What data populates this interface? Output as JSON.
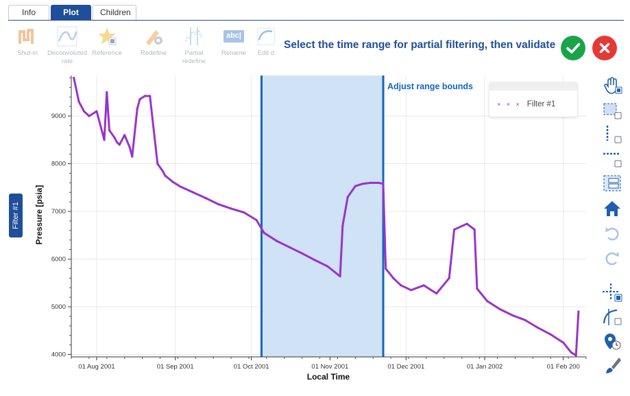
{
  "tabs": [
    {
      "label": "Info"
    },
    {
      "label": "Plot"
    },
    {
      "label": "Children"
    }
  ],
  "toolbar": {
    "items": [
      {
        "label1": "Shut-in",
        "label2": "",
        "icon": "shut-in-icon"
      },
      {
        "label1": "Deconvoluted",
        "label2": "rate",
        "icon": "deconvolution-icon"
      },
      {
        "label1": "Reference",
        "label2": "",
        "icon": "star-icon"
      },
      {
        "label1": "Redefine",
        "label2": "",
        "icon": "pencil-gear-icon"
      },
      {
        "label1": "Partial",
        "label2": "redefine",
        "icon": "partial-redefine-icon"
      },
      {
        "label1": "Rename",
        "label2": "",
        "icon": "rename-icon"
      },
      {
        "label1": "Edit d",
        "label2": "",
        "icon": "edit-icon"
      }
    ],
    "rename_glyph": "abc|"
  },
  "prompt": "Select the time range for partial filtering, then validate",
  "side_tab": "Filter #1",
  "annotation": "Adjust range bounds",
  "legend": {
    "marker": "× × ×",
    "label": "Filter #1"
  },
  "colors": {
    "series": "#9932cc",
    "selection_fill": "#cfe2f6",
    "selection_border": "#1565c0",
    "accent": "#1f4e9a"
  },
  "chart_data": {
    "type": "line",
    "xlabel": "Local Time",
    "ylabel": "Pressure [psia]",
    "ylim": [
      3950,
      9850
    ],
    "xlim": [
      "2001-07-22",
      "2002-02-10"
    ],
    "grid": true,
    "legend_placement": "top-right",
    "x_ticks": [
      "01 Aug 2001",
      "01 Sep 2001",
      "01 Oct 2001",
      "01 Nov 2001",
      "01 Dec 2001",
      "01 Jan 2002",
      "01 Feb 200"
    ],
    "x_tick_dates": [
      "2001-08-01",
      "2001-09-01",
      "2001-10-01",
      "2001-11-01",
      "2001-12-01",
      "2002-01-01",
      "2002-02-01"
    ],
    "y_ticks": [
      4000,
      5000,
      6000,
      7000,
      8000,
      9000
    ],
    "selection_range": [
      "2001-10-05",
      "2001-11-22"
    ],
    "series": [
      {
        "name": "Filter #1",
        "x": [
          "2001-07-23",
          "2001-07-25",
          "2001-07-27",
          "2001-07-29",
          "2001-08-01",
          "2001-08-04",
          "2001-08-05",
          "2001-08-06",
          "2001-08-08",
          "2001-08-09",
          "2001-08-10",
          "2001-08-12",
          "2001-08-14",
          "2001-08-15",
          "2001-08-17",
          "2001-08-18",
          "2001-08-20",
          "2001-08-22",
          "2001-08-25",
          "2001-08-27",
          "2001-08-28",
          "2001-08-31",
          "2001-09-03",
          "2001-09-08",
          "2001-09-13",
          "2001-09-18",
          "2001-09-23",
          "2001-09-28",
          "2001-10-03",
          "2001-10-06",
          "2001-10-11",
          "2001-10-16",
          "2001-10-21",
          "2001-10-26",
          "2001-10-31",
          "2001-11-05",
          "2001-11-06",
          "2001-11-08",
          "2001-11-11",
          "2001-11-14",
          "2001-11-17",
          "2001-11-20",
          "2001-11-22",
          "2001-11-23",
          "2001-11-26",
          "2001-11-29",
          "2001-12-03",
          "2001-12-08",
          "2001-12-13",
          "2001-12-18",
          "2001-12-20",
          "2001-12-25",
          "2001-12-28",
          "2001-12-29",
          "2002-01-02",
          "2002-01-07",
          "2002-01-12",
          "2002-01-17",
          "2002-01-22",
          "2002-01-27",
          "2002-02-01",
          "2002-02-04",
          "2002-02-06",
          "2002-02-07"
        ],
        "y": [
          9800,
          9300,
          9100,
          9000,
          9100,
          8500,
          9500,
          8700,
          8550,
          8450,
          8400,
          8600,
          8350,
          8150,
          9150,
          9350,
          9420,
          9420,
          8000,
          7850,
          7750,
          7620,
          7520,
          7400,
          7280,
          7150,
          7060,
          6980,
          6820,
          6550,
          6380,
          6250,
          6120,
          5980,
          5850,
          5640,
          6700,
          7300,
          7530,
          7580,
          7600,
          7600,
          7580,
          5800,
          5600,
          5450,
          5350,
          5450,
          5280,
          5600,
          6620,
          6740,
          6620,
          5380,
          5120,
          4950,
          4820,
          4720,
          4560,
          4420,
          4250,
          4050,
          3980,
          4900
        ]
      }
    ]
  }
}
